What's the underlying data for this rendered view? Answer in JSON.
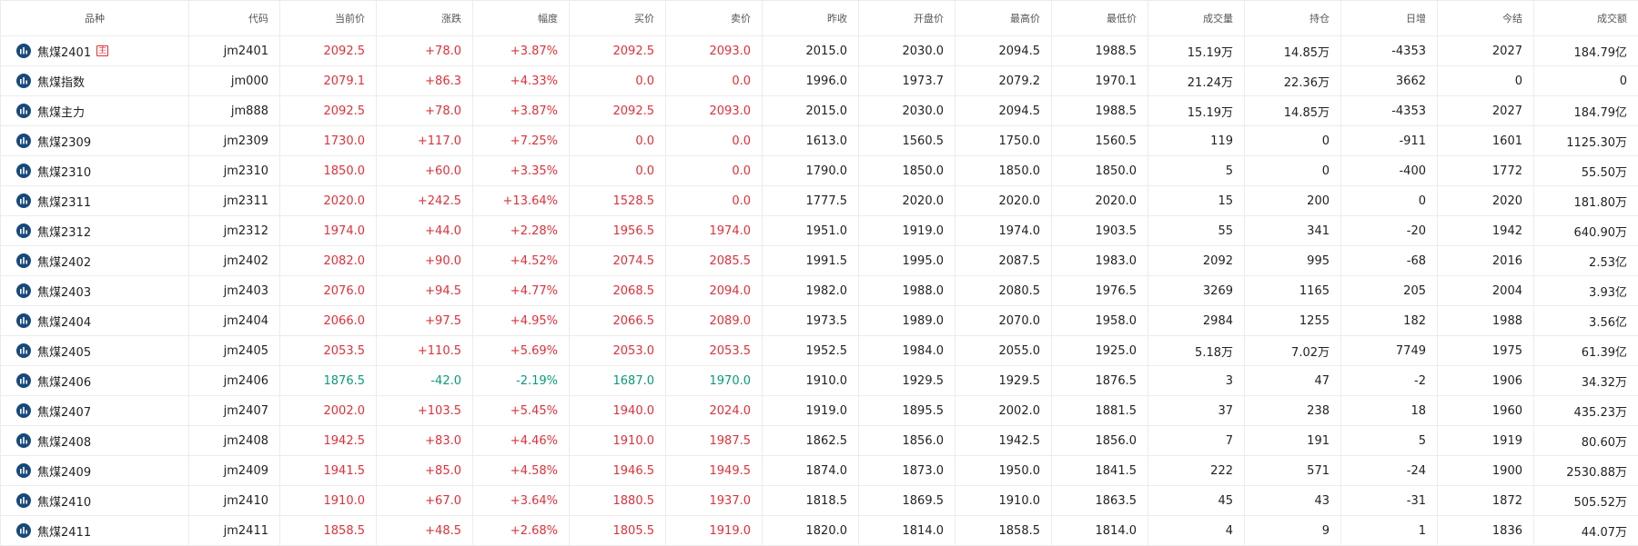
{
  "colors": {
    "up": "#e0303a",
    "down": "#0a9b78",
    "icon": "#17487b"
  },
  "columns": [
    "品种",
    "代码",
    "当前价",
    "涨跌",
    "幅度",
    "买价",
    "卖价",
    "昨收",
    "开盘价",
    "最高价",
    "最低价",
    "成交量",
    "持仓",
    "日增",
    "今结",
    "成交额"
  ],
  "rows": [
    {
      "name": "焦煤2401",
      "badge": "主",
      "trend": "up",
      "cells": [
        "jm2401",
        "2092.5",
        "+78.0",
        "+3.87%",
        "2092.5",
        "2093.0",
        "2015.0",
        "2030.0",
        "2094.5",
        "1988.5",
        "15.19万",
        "14.85万",
        "-4353",
        "2027",
        "184.79亿"
      ]
    },
    {
      "name": "焦煤指数",
      "trend": "up",
      "cells": [
        "jm000",
        "2079.1",
        "+86.3",
        "+4.33%",
        "0.0",
        "0.0",
        "1996.0",
        "1973.7",
        "2079.2",
        "1970.1",
        "21.24万",
        "22.36万",
        "3662",
        "0",
        "0"
      ]
    },
    {
      "name": "焦煤主力",
      "trend": "up",
      "cells": [
        "jm888",
        "2092.5",
        "+78.0",
        "+3.87%",
        "2092.5",
        "2093.0",
        "2015.0",
        "2030.0",
        "2094.5",
        "1988.5",
        "15.19万",
        "14.85万",
        "-4353",
        "2027",
        "184.79亿"
      ]
    },
    {
      "name": "焦煤2309",
      "trend": "up",
      "cells": [
        "jm2309",
        "1730.0",
        "+117.0",
        "+7.25%",
        "0.0",
        "0.0",
        "1613.0",
        "1560.5",
        "1750.0",
        "1560.5",
        "119",
        "0",
        "-911",
        "1601",
        "1125.30万"
      ]
    },
    {
      "name": "焦煤2310",
      "trend": "up",
      "cells": [
        "jm2310",
        "1850.0",
        "+60.0",
        "+3.35%",
        "0.0",
        "0.0",
        "1790.0",
        "1850.0",
        "1850.0",
        "1850.0",
        "5",
        "0",
        "-400",
        "1772",
        "55.50万"
      ]
    },
    {
      "name": "焦煤2311",
      "trend": "up",
      "cells": [
        "jm2311",
        "2020.0",
        "+242.5",
        "+13.64%",
        "1528.5",
        "0.0",
        "1777.5",
        "2020.0",
        "2020.0",
        "2020.0",
        "15",
        "200",
        "0",
        "2020",
        "181.80万"
      ]
    },
    {
      "name": "焦煤2312",
      "trend": "up",
      "cells": [
        "jm2312",
        "1974.0",
        "+44.0",
        "+2.28%",
        "1956.5",
        "1974.0",
        "1951.0",
        "1919.0",
        "1974.0",
        "1903.5",
        "55",
        "341",
        "-20",
        "1942",
        "640.90万"
      ]
    },
    {
      "name": "焦煤2402",
      "trend": "up",
      "cells": [
        "jm2402",
        "2082.0",
        "+90.0",
        "+4.52%",
        "2074.5",
        "2085.5",
        "1991.5",
        "1995.0",
        "2087.5",
        "1983.0",
        "2092",
        "995",
        "-68",
        "2016",
        "2.53亿"
      ]
    },
    {
      "name": "焦煤2403",
      "trend": "up",
      "cells": [
        "jm2403",
        "2076.0",
        "+94.5",
        "+4.77%",
        "2068.5",
        "2094.0",
        "1982.0",
        "1988.0",
        "2080.5",
        "1976.5",
        "3269",
        "1165",
        "205",
        "2004",
        "3.93亿"
      ]
    },
    {
      "name": "焦煤2404",
      "trend": "up",
      "cells": [
        "jm2404",
        "2066.0",
        "+97.5",
        "+4.95%",
        "2066.5",
        "2089.0",
        "1973.5",
        "1989.0",
        "2070.0",
        "1958.0",
        "2984",
        "1255",
        "182",
        "1988",
        "3.56亿"
      ]
    },
    {
      "name": "焦煤2405",
      "trend": "up",
      "cells": [
        "jm2405",
        "2053.5",
        "+110.5",
        "+5.69%",
        "2053.0",
        "2053.5",
        "1952.5",
        "1984.0",
        "2055.0",
        "1925.0",
        "5.18万",
        "7.02万",
        "7749",
        "1975",
        "61.39亿"
      ]
    },
    {
      "name": "焦煤2406",
      "trend": "down",
      "cells": [
        "jm2406",
        "1876.5",
        "-42.0",
        "-2.19%",
        "1687.0",
        "1970.0",
        "1910.0",
        "1929.5",
        "1929.5",
        "1876.5",
        "3",
        "47",
        "-2",
        "1906",
        "34.32万"
      ]
    },
    {
      "name": "焦煤2407",
      "trend": "up",
      "cells": [
        "jm2407",
        "2002.0",
        "+103.5",
        "+5.45%",
        "1940.0",
        "2024.0",
        "1919.0",
        "1895.5",
        "2002.0",
        "1881.5",
        "37",
        "238",
        "18",
        "1960",
        "435.23万"
      ]
    },
    {
      "name": "焦煤2408",
      "trend": "up",
      "cells": [
        "jm2408",
        "1942.5",
        "+83.0",
        "+4.46%",
        "1910.0",
        "1987.5",
        "1862.5",
        "1856.0",
        "1942.5",
        "1856.0",
        "7",
        "191",
        "5",
        "1919",
        "80.60万"
      ]
    },
    {
      "name": "焦煤2409",
      "trend": "up",
      "cells": [
        "jm2409",
        "1941.5",
        "+85.0",
        "+4.58%",
        "1946.5",
        "1949.5",
        "1874.0",
        "1873.0",
        "1950.0",
        "1841.5",
        "222",
        "571",
        "-24",
        "1900",
        "2530.88万"
      ]
    },
    {
      "name": "焦煤2410",
      "trend": "up",
      "cells": [
        "jm2410",
        "1910.0",
        "+67.0",
        "+3.64%",
        "1880.5",
        "1937.0",
        "1818.5",
        "1869.5",
        "1910.0",
        "1863.5",
        "45",
        "43",
        "-31",
        "1872",
        "505.52万"
      ]
    },
    {
      "name": "焦煤2411",
      "trend": "up",
      "cells": [
        "jm2411",
        "1858.5",
        "+48.5",
        "+2.68%",
        "1805.5",
        "1919.0",
        "1820.0",
        "1814.0",
        "1858.5",
        "1814.0",
        "4",
        "9",
        "1",
        "1836",
        "44.07万"
      ]
    }
  ]
}
